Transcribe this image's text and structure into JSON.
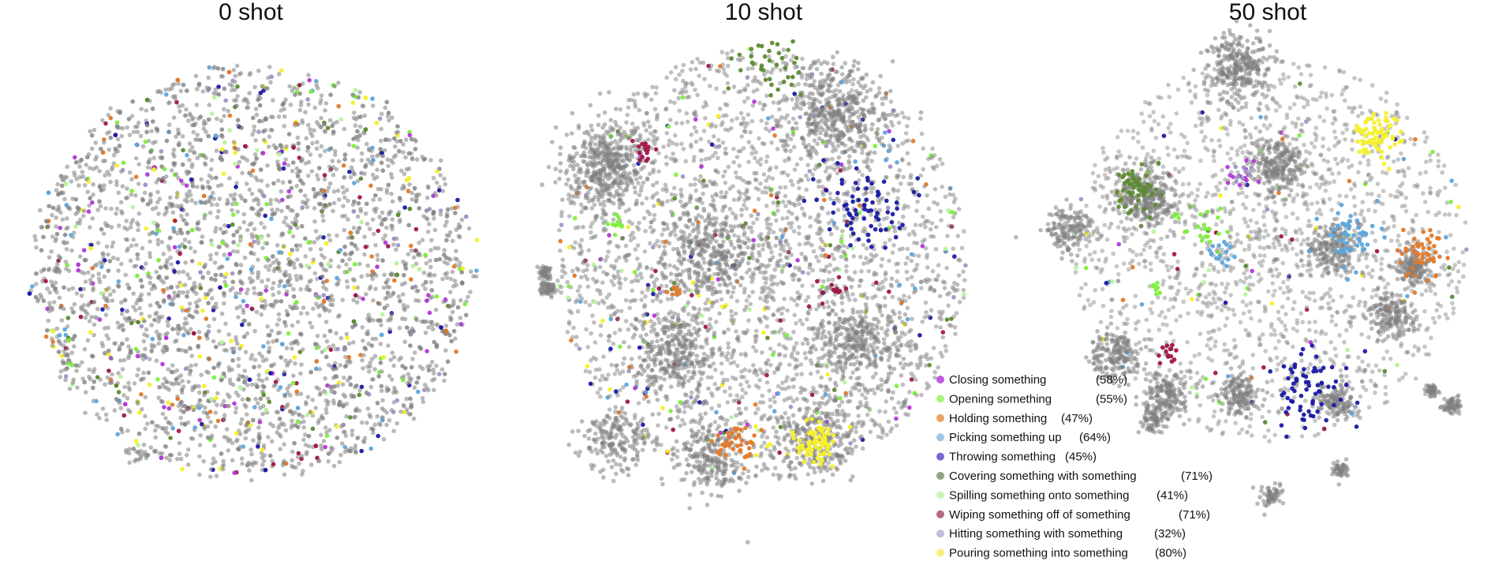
{
  "chart_data": {
    "type": "scatter",
    "panels": [
      {
        "title": "0 shot"
      },
      {
        "title": "10 shot"
      },
      {
        "title": "50 shot"
      }
    ],
    "background_color": "#808080",
    "legend": {
      "placement": "bottom-center",
      "entries": [
        {
          "label": "Closing something",
          "accuracy": "(58%)",
          "color": "#c45ae0"
        },
        {
          "label": "Opening something",
          "accuracy": "(55%)",
          "color": "#a6f57a"
        },
        {
          "label": "Holding something",
          "accuracy": "(47%)",
          "color": "#e8a465"
        },
        {
          "label": "Picking something up",
          "accuracy": "(64%)",
          "color": "#9ac6e8"
        },
        {
          "label": "Throwing something",
          "accuracy": "(45%)",
          "color": "#7468d4"
        },
        {
          "label": "Covering something with something",
          "accuracy": "(71%)",
          "color": "#93a37e"
        },
        {
          "label": "Spilling something onto something",
          "accuracy": "(41%)",
          "color": "#ccf5b8"
        },
        {
          "label": "Wiping something off of something",
          "accuracy": "(71%)",
          "color": "#b56a80"
        },
        {
          "label": "Hitting something with something",
          "accuracy": "(32%)",
          "color": "#c4bedc"
        },
        {
          "label": "Pouring something into something",
          "accuracy": "(80%)",
          "color": "#f3f07a"
        }
      ]
    },
    "cluster_colors": {
      "closing": "#b23ad6",
      "opening": "#7cf03a",
      "holding": "#e07a2c",
      "picking_up": "#5ea6dc",
      "throwing": "#1a1aa6",
      "covering": "#5e8a30",
      "spilling": "#b6f49a",
      "wiping": "#a0184a",
      "hitting": "#9d96c6",
      "pouring": "#f4f02c"
    }
  }
}
